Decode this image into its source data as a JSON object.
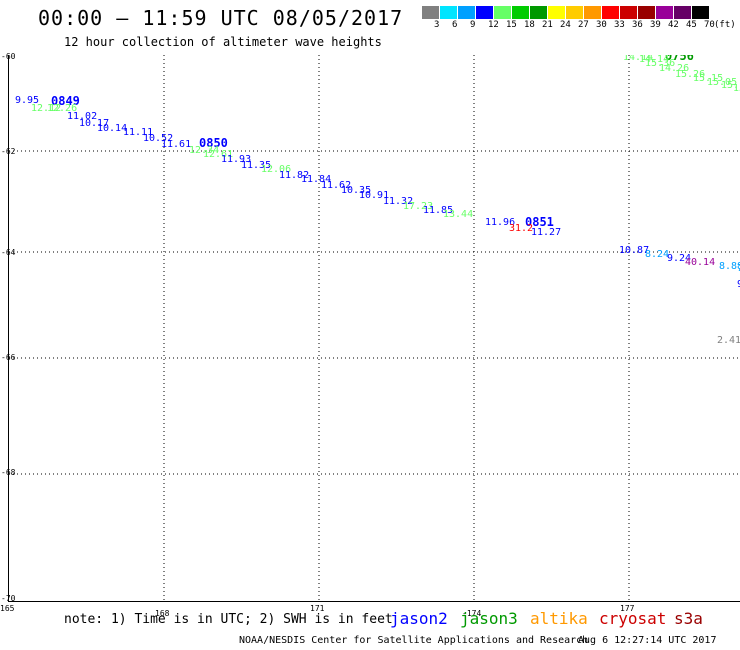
{
  "header": {
    "title": "00:00 – 11:59 UTC 08/05/2017",
    "subtitle": "12 hour collection of altimeter wave heights"
  },
  "colorbar": {
    "unit": "(ft)",
    "bins": [
      {
        "label": "3",
        "color": "#808080"
      },
      {
        "label": "6",
        "color": "#00e5ff"
      },
      {
        "label": "9",
        "color": "#00a0ff"
      },
      {
        "label": "12",
        "color": "#0000ff"
      },
      {
        "label": "15",
        "color": "#66ff66"
      },
      {
        "label": "18",
        "color": "#00cc00"
      },
      {
        "label": "21",
        "color": "#009900"
      },
      {
        "label": "24",
        "color": "#ffff00"
      },
      {
        "label": "27",
        "color": "#ffcc00"
      },
      {
        "label": "30",
        "color": "#ff9900"
      },
      {
        "label": "33",
        "color": "#ff0000"
      },
      {
        "label": "36",
        "color": "#cc0000"
      },
      {
        "label": "39",
        "color": "#990000"
      },
      {
        "label": "42",
        "color": "#990099"
      },
      {
        "label": "45",
        "color": "#660066"
      },
      {
        "label": "70",
        "color": "#000000"
      }
    ]
  },
  "axes": {
    "lat_labels": [
      "-60",
      "-62",
      "-64",
      "-66",
      "-68",
      "-70"
    ],
    "lon_labels": [
      "165",
      "168",
      "171",
      "-174",
      "177"
    ]
  },
  "passes": [
    {
      "label": "0849",
      "color": "#0000ff"
    },
    {
      "label": "0850",
      "color": "#0000ff"
    },
    {
      "label": "0851",
      "color": "#0000ff"
    },
    {
      "label": "0756",
      "color": "#009900"
    }
  ],
  "observations": [
    {
      "text": "9.95",
      "color": "#0000ff"
    },
    {
      "text": "12.12",
      "color": "#66ff66"
    },
    {
      "text": "12.26",
      "color": "#66ff66"
    },
    {
      "text": "11.02",
      "color": "#0000ff"
    },
    {
      "text": "10.17",
      "color": "#0000ff"
    },
    {
      "text": "10.14",
      "color": "#0000ff"
    },
    {
      "text": "11.11",
      "color": "#0000ff"
    },
    {
      "text": "10.52",
      "color": "#0000ff"
    },
    {
      "text": "11.61",
      "color": "#0000ff"
    },
    {
      "text": "12.34",
      "color": "#66ff66"
    },
    {
      "text": "12.61",
      "color": "#66ff66"
    },
    {
      "text": "11.93",
      "color": "#0000ff"
    },
    {
      "text": "11.35",
      "color": "#0000ff"
    },
    {
      "text": "12.06",
      "color": "#66ff66"
    },
    {
      "text": "11.82",
      "color": "#0000ff"
    },
    {
      "text": "11.84",
      "color": "#0000ff"
    },
    {
      "text": "11.62",
      "color": "#0000ff"
    },
    {
      "text": "10.35",
      "color": "#0000ff"
    },
    {
      "text": "10.91",
      "color": "#0000ff"
    },
    {
      "text": "11.32",
      "color": "#0000ff"
    },
    {
      "text": "17.23",
      "color": "#66ff66"
    },
    {
      "text": "11.85",
      "color": "#0000ff"
    },
    {
      "text": "13.44",
      "color": "#66ff66"
    },
    {
      "text": "11.96",
      "color": "#0000ff"
    },
    {
      "text": "31.2",
      "color": "#ff0000"
    },
    {
      "text": "11.27",
      "color": "#0000ff"
    },
    {
      "text": "10.87",
      "color": "#0000ff"
    },
    {
      "text": "8.24",
      "color": "#00a0ff"
    },
    {
      "text": "9.24",
      "color": "#0000ff"
    },
    {
      "text": "40.14",
      "color": "#990099"
    },
    {
      "text": "8.88",
      "color": "#00a0ff"
    },
    {
      "text": "7",
      "color": "#00a0ff"
    },
    {
      "text": "9",
      "color": "#0000ff"
    },
    {
      "text": "2.41",
      "color": "#808080"
    },
    {
      "text": "14.14",
      "color": "#66ff66"
    },
    {
      "text": "14.14",
      "color": "#66ff66"
    },
    {
      "text": "15.36",
      "color": "#66ff66"
    },
    {
      "text": "14.26",
      "color": "#66ff66"
    },
    {
      "text": "15.26",
      "color": "#66ff66"
    },
    {
      "text": "15.15",
      "color": "#66ff66"
    },
    {
      "text": "15.05",
      "color": "#66ff66"
    },
    {
      "text": "15.16",
      "color": "#66ff66"
    },
    {
      "text": "15.19",
      "color": "#66ff66"
    }
  ],
  "footer": {
    "note": "note: 1) Time is in UTC; 2) SWH is in feet",
    "legend": [
      {
        "label": "jason2",
        "color": "#0000ff"
      },
      {
        "label": "jason3",
        "color": "#009900"
      },
      {
        "label": "altika",
        "color": "#ff9900"
      },
      {
        "label": "cryosat",
        "color": "#cc0000"
      },
      {
        "label": "s3a",
        "color": "#990000"
      }
    ],
    "credit": "NOAA/NESDIS Center for Satellite Applications and Research",
    "timestamp": "Aug  6 12:27:14 UTC 2017"
  }
}
